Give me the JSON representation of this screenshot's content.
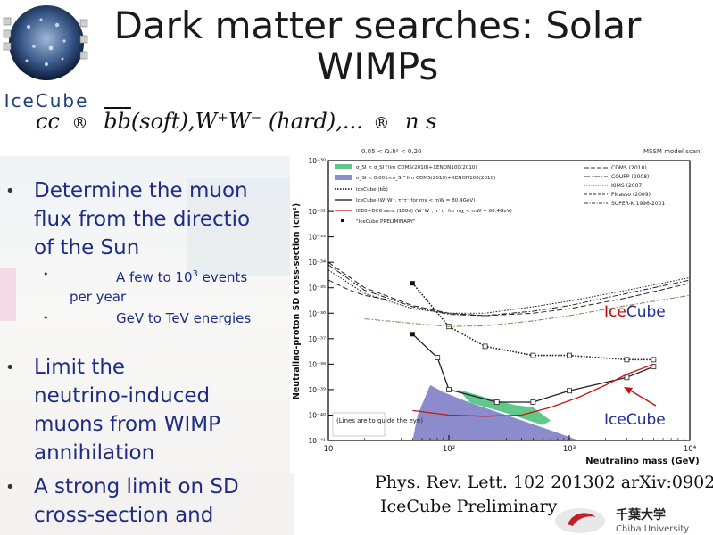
{
  "slide": {
    "title_line1": "Dark matter searches: Solar",
    "title_line2": "WIMPs",
    "logo_text": "IceCube",
    "formula": {
      "cc": "cc",
      "arrow1": "®",
      "bb": "bb",
      "paren": "(soft),",
      "ww": "W⁺W⁻",
      "hard": "(hard),...",
      "arrow2": "®",
      "nu": "n s"
    },
    "bullets": [
      {
        "lines": [
          "Determine the muon",
          "flux from the directio",
          "of the Sun"
        ]
      },
      {
        "lines": [
          "Limit the",
          "neutrino-induced",
          "muons from WIMP",
          "annihilation"
        ]
      },
      {
        "lines": [
          "A strong limit on SD",
          "cross-section and"
        ]
      }
    ],
    "sub_bullets": {
      "first_pre": "A few to 10",
      "first_sup": "3",
      "first_post": " events",
      "first_line2": "per year",
      "second": "GeV to TeV energies"
    },
    "reference_line1": "Phys. Rev. Lett. 102 201302  arXiv:0902",
    "reference_line2": "IceCube Preliminary",
    "university_jp": "千葉大学",
    "university_en": "Chiba University"
  },
  "chart_data": {
    "type": "line",
    "top_left_label": "0.05 < Ωₓh² < 0.20",
    "top_right_label": "MSSM model scan",
    "xlabel": "Neutralino mass (GeV)",
    "ylabel": "Neutralino-proton SD cross-section (cm²)",
    "xscale": "log",
    "yscale": "log",
    "xlim": [
      10,
      10000
    ],
    "ylim": [
      1e-41,
      1e-30
    ],
    "x_ticks": [
      "10",
      "10²",
      "10³",
      "10⁴"
    ],
    "y_ticks": [
      "10⁻³⁰",
      "10⁻³²",
      "10⁻³³",
      "10⁻³⁴",
      "10⁻³⁵",
      "10⁻³⁶",
      "10⁻³⁷",
      "10⁻³⁸",
      "10⁻³⁹",
      "10⁻⁴⁰",
      "10⁻⁴¹"
    ],
    "annotation": "(Lines are to guide the eye)",
    "icecube_label_1": "IceCube",
    "icecube_label_2": "IceCube",
    "legend_left": [
      "σ_SI < σ_SI^lim CDMS(2010)+XENON100(2010)",
      "σ_SI < 0.001×σ_SI^lim CDMS(2010)+XENON100(2010)",
      "IceCube (bb̄)",
      "IceCube (W⁺W⁻, τ⁺τ⁻ for mχ < mW = 80.4GeV)",
      "IC80+DC6 sens (180d) (W⁺W⁻, τ⁺τ⁻ for mχ < mW = 80.4GeV)",
      "\"IceCube PRELIMINARY\""
    ],
    "legend_right": [
      "CDMS (2010)",
      "COUPP (2008)",
      "KIMS (2007)",
      "Picasso (2009)",
      "SUPER-K 1996-2001"
    ],
    "colors": {
      "green_region": "#5fc88a",
      "blue_region": "#8c8ccc",
      "sens_line": "#cc1111",
      "label_ice": "#c00000",
      "label_cube": "#1e2ca0"
    },
    "series": [
      {
        "name": "IceCube (bb̄)",
        "style": "dotted",
        "x": [
          50,
          100,
          200,
          500,
          1000,
          3000,
          5000
        ],
        "y": [
          1.5e-35,
          3e-37,
          5e-38,
          2.2e-38,
          2.2e-38,
          1.5e-38,
          1.5e-38
        ]
      },
      {
        "name": "IceCube (W⁺W⁻, τ⁺τ⁻ for mχ < mW = 80.4GeV)",
        "style": "solid",
        "x": [
          50,
          80.4,
          100,
          250,
          500,
          1000,
          3000,
          5000
        ],
        "y": [
          1.5e-37,
          1.8e-38,
          1e-39,
          3.2e-40,
          3.2e-40,
          9e-40,
          3e-39,
          8e-39
        ]
      },
      {
        "name": "IC80+DC6 sens (180d) (W⁺W⁻, τ⁺τ⁻ for mχ < mW = 80.4GeV)",
        "style": "solid",
        "x": [
          50,
          100,
          200,
          400,
          700,
          1200,
          2000,
          3000,
          5000
        ],
        "y": [
          1.5e-40,
          1e-40,
          9e-41,
          1e-40,
          2e-40,
          5e-40,
          1.5e-39,
          4e-39,
          1e-38
        ]
      },
      {
        "name": "CDMS (2010)",
        "style": "dashed",
        "x": [
          10,
          20,
          50,
          100,
          200,
          500,
          1000,
          3000,
          10000
        ],
        "y": [
          1e-34,
          1e-35,
          2e-36,
          1e-36,
          8e-37,
          1e-36,
          1.5e-36,
          4e-36,
          1.5e-35
        ]
      },
      {
        "name": "COUPP (2008)",
        "style": "dashdot",
        "x": [
          10,
          20,
          50,
          100,
          200,
          500,
          1000,
          3000,
          10000
        ],
        "y": [
          8e-35,
          8e-36,
          1.8e-36,
          9e-37,
          8e-37,
          1.2e-36,
          2e-36,
          6e-36,
          2e-35
        ]
      },
      {
        "name": "KIMS (2007)",
        "style": "dotted",
        "x": [
          10,
          20,
          50,
          100,
          200,
          500,
          1000,
          3000,
          10000
        ],
        "y": [
          5e-35,
          6e-36,
          1.5e-36,
          1e-36,
          1e-36,
          1.8e-36,
          3e-36,
          8e-36,
          2.5e-35
        ]
      },
      {
        "name": "Picasso (2009)",
        "style": "dashed",
        "x": [
          10,
          15,
          20,
          30
        ],
        "y": [
          2e-35,
          8e-36,
          5e-36,
          3.5e-36
        ]
      },
      {
        "name": "SUPER-K 1996-2001",
        "style": "dashdot",
        "x": [
          20,
          50,
          100,
          200,
          500,
          1000,
          3000,
          10000
        ],
        "y": [
          6e-37,
          4e-37,
          3e-37,
          3.2e-37,
          5e-37,
          8e-37,
          2e-36,
          5e-36
        ]
      }
    ],
    "preliminary_points": [
      {
        "x": 50,
        "y": 1.5e-35
      },
      {
        "x": 50,
        "y": 1.5e-37
      }
    ]
  }
}
